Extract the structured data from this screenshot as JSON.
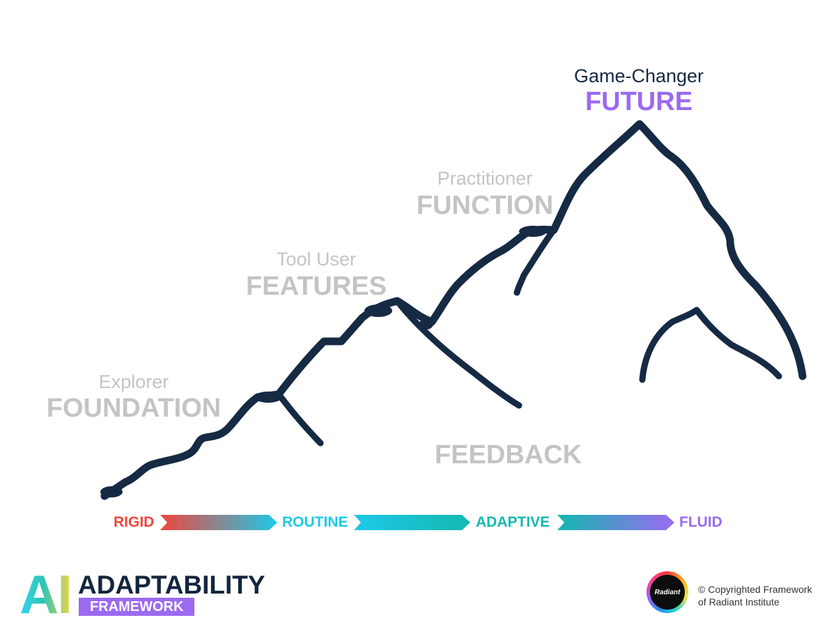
{
  "stages": [
    {
      "role": "Explorer",
      "name": "FOUNDATION"
    },
    {
      "role": "Tool User",
      "name": "FEATURES"
    },
    {
      "role": "Practitioner",
      "name": "FUNCTION"
    },
    {
      "role": "Game-Changer",
      "name": "FUTURE"
    }
  ],
  "feedback_label": "FEEDBACK",
  "scale": [
    {
      "label": "RIGID",
      "color": "#f0463c"
    },
    {
      "label": "ROUTINE",
      "color": "#1ec9e8"
    },
    {
      "label": "ADAPTIVE",
      "color": "#13b8b0"
    },
    {
      "label": "FLUID",
      "color": "#9b6af0"
    }
  ],
  "colors": {
    "mountain": "#162a44",
    "muted_text": "#c4c4c4",
    "accent_purple": "#9b6af0"
  },
  "logo": {
    "mark": "AI",
    "title": "ADAPTABILITY",
    "subtitle": "FRAMEWORK"
  },
  "badge": {
    "text": "Radiant"
  },
  "copyright": {
    "line1": "© Copyrighted Framework",
    "line2": "of Radiant Institute"
  }
}
